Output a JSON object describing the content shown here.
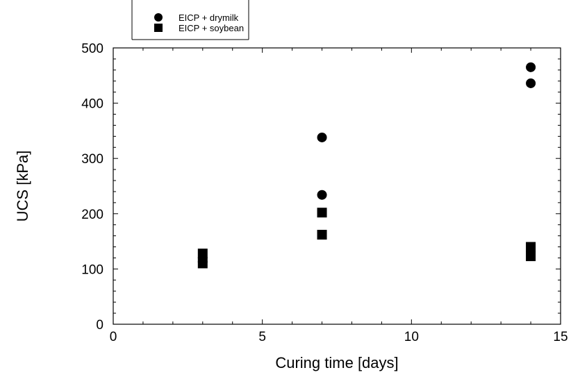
{
  "chart_data": {
    "type": "scatter",
    "xlabel": "Curing time [days]",
    "ylabel": "UCS [kPa]",
    "xlim": [
      0,
      15
    ],
    "ylim": [
      0,
      500
    ],
    "xticks": [
      0,
      5,
      10,
      15
    ],
    "yticks": [
      0,
      100,
      200,
      300,
      400,
      500
    ],
    "grid": false,
    "legend_position": "top-left",
    "series": [
      {
        "name": "EICP + drymilk",
        "marker": "circle",
        "color": "#000000",
        "points": [
          {
            "x": 3,
            "y": 120
          },
          {
            "x": 3,
            "y": 113
          },
          {
            "x": 7,
            "y": 338
          },
          {
            "x": 7,
            "y": 234
          },
          {
            "x": 14,
            "y": 465
          },
          {
            "x": 14,
            "y": 436
          }
        ]
      },
      {
        "name": "EICP + soybean",
        "marker": "square",
        "color": "#000000",
        "points": [
          {
            "x": 3,
            "y": 128
          },
          {
            "x": 3,
            "y": 110
          },
          {
            "x": 7,
            "y": 202
          },
          {
            "x": 7,
            "y": 162
          },
          {
            "x": 14,
            "y": 140
          },
          {
            "x": 14,
            "y": 123
          }
        ]
      }
    ]
  }
}
